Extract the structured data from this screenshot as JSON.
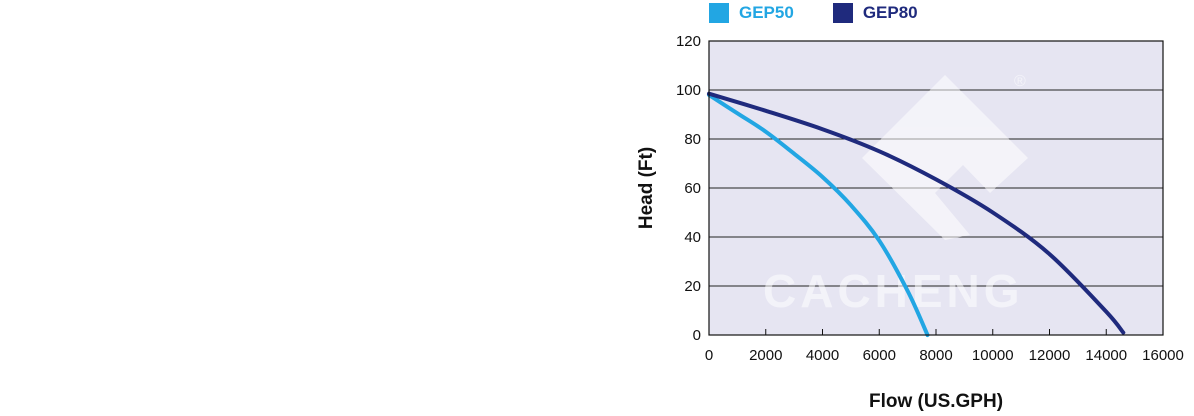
{
  "chart_data": {
    "type": "line",
    "title": "",
    "xlabel": "Flow (US.GPH)",
    "ylabel": "Head (Ft)",
    "xlim": [
      0,
      16000
    ],
    "ylim": [
      0,
      120
    ],
    "x_ticks": [
      0,
      2000,
      4000,
      6000,
      8000,
      10000,
      12000,
      14000,
      16000
    ],
    "y_ticks": [
      0,
      20,
      40,
      60,
      80,
      100,
      120
    ],
    "grid": "horizontal",
    "legend_position": "top",
    "plot_background": "#e6e5f2",
    "series": [
      {
        "name": "GEP50",
        "color": "#22a6e3",
        "x": [
          0,
          1000,
          2000,
          3000,
          4000,
          5000,
          6000,
          7000,
          7700
        ],
        "y": [
          98,
          90.5,
          83,
          74,
          64.5,
          53,
          38.5,
          18,
          0
        ]
      },
      {
        "name": "GEP80",
        "color": "#1f2a7d",
        "x": [
          0,
          2000,
          4000,
          6000,
          8000,
          10000,
          12000,
          14000,
          14600
        ],
        "y": [
          98.5,
          91.5,
          84,
          75,
          63.5,
          50,
          33,
          9.5,
          1
        ]
      }
    ]
  },
  "watermark": {
    "text": "CACHENG",
    "mark": "®"
  }
}
